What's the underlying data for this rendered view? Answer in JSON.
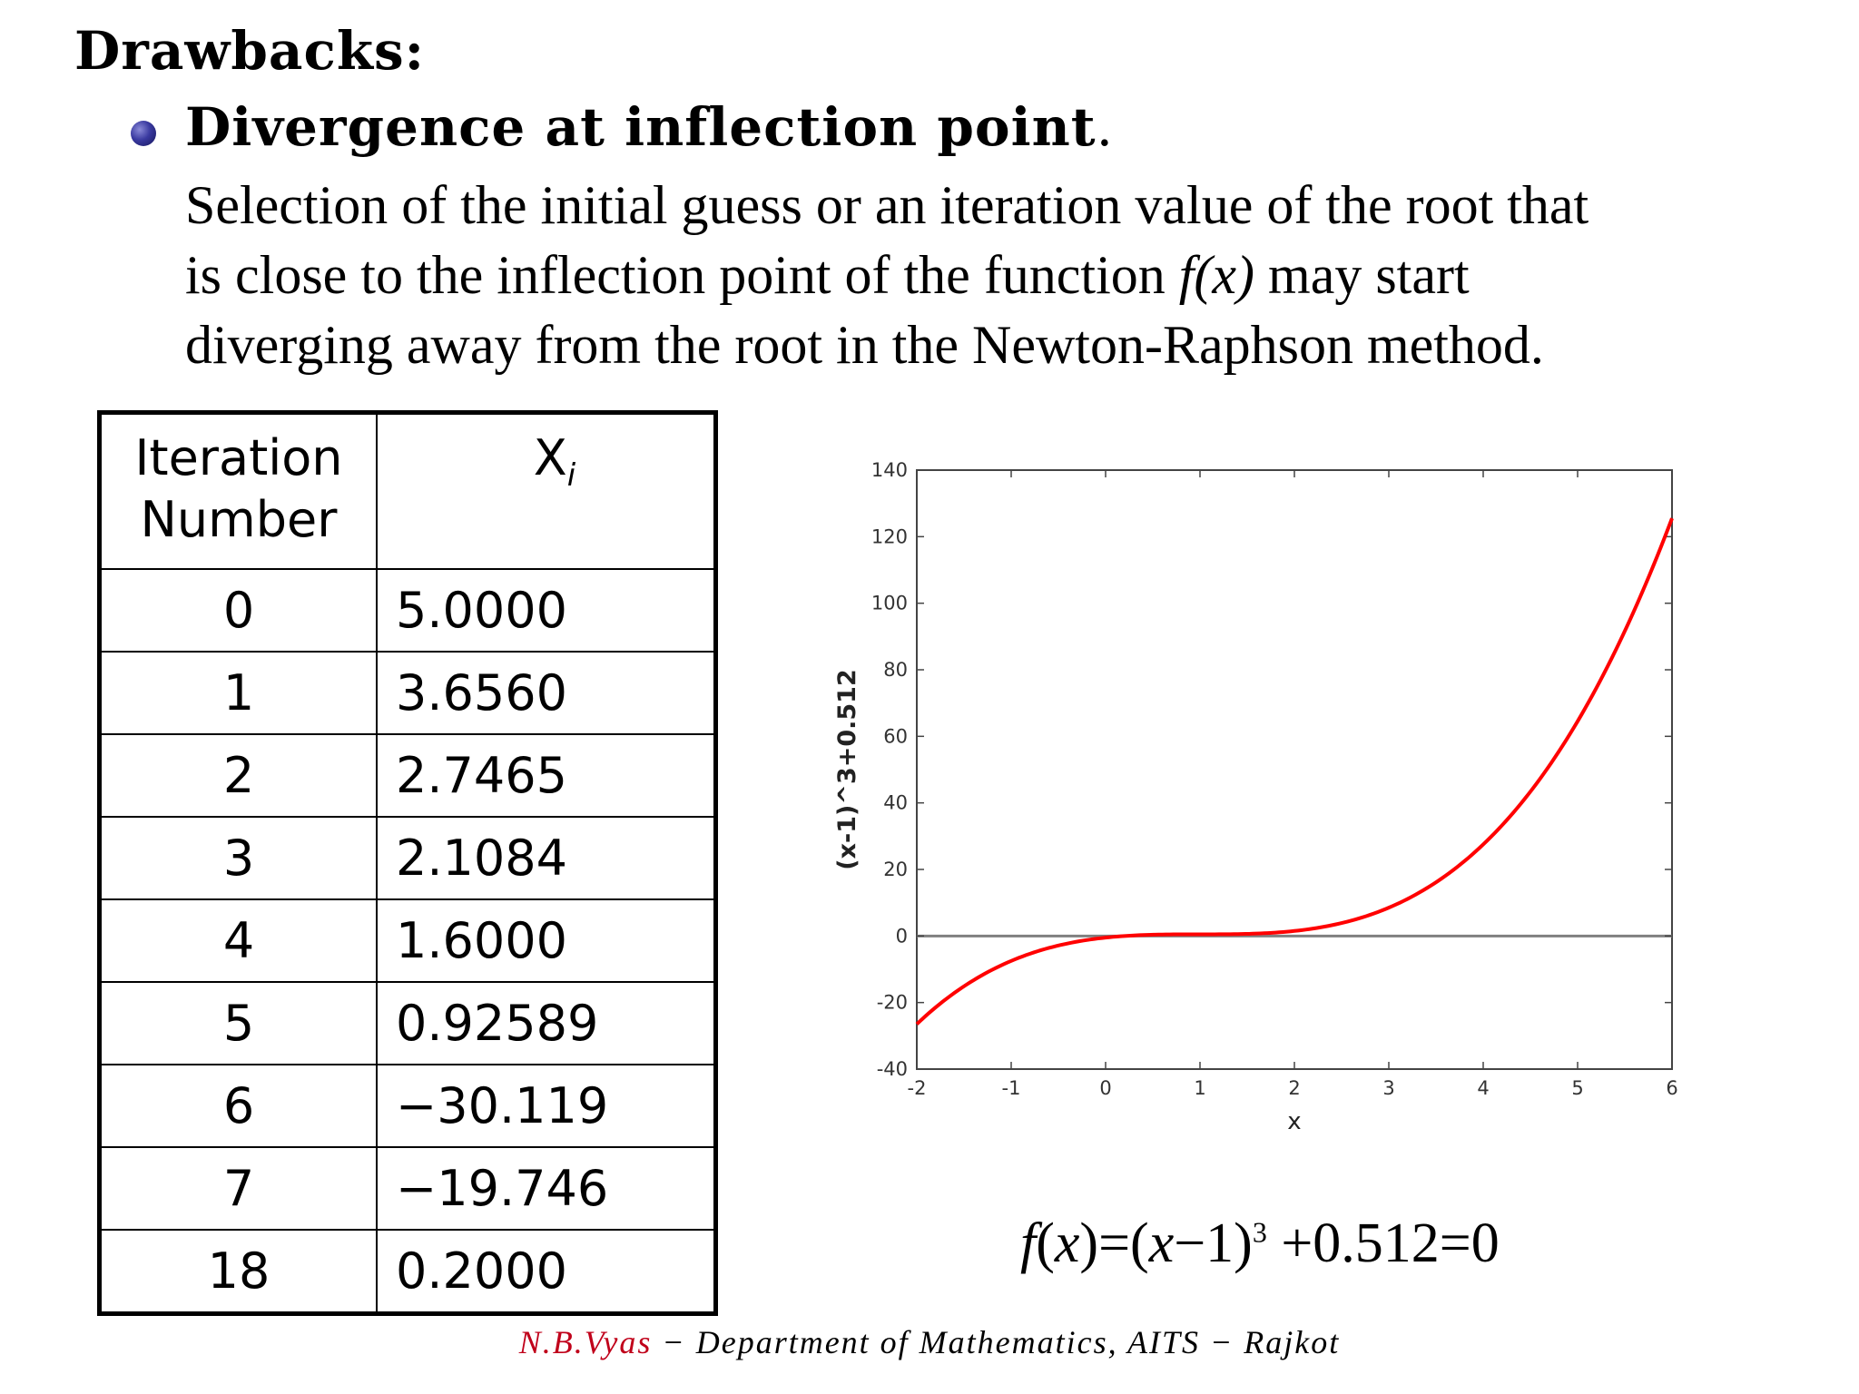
{
  "heading": "Drawbacks:",
  "bullet": {
    "title": "Divergence at inflection point",
    "title_end": ".",
    "lines": [
      "Selection of the initial guess or an iteration value of the root that",
      "is close to the inflection point of the function ",
      "diverging away from the root in the Newton-Raphson method."
    ],
    "fx": "f(x)",
    "line2_end": " may start"
  },
  "table": {
    "headers": {
      "iteration_line1": "Iteration",
      "iteration_line2": "Number",
      "xi": "X",
      "xi_sub": "i"
    },
    "rows": [
      {
        "n": "0",
        "x": "5.0000"
      },
      {
        "n": "1",
        "x": "3.6560"
      },
      {
        "n": "2",
        "x": "2.7465"
      },
      {
        "n": "3",
        "x": "2.1084"
      },
      {
        "n": "4",
        "x": "1.6000"
      },
      {
        "n": "5",
        "x": "0.92589"
      },
      {
        "n": "6",
        "x": "−30.119"
      },
      {
        "n": "7",
        "x": "−19.746"
      },
      {
        "n": "18",
        "x": "0.2000"
      }
    ]
  },
  "chart_data": {
    "type": "line",
    "xlabel": "x",
    "ylabel": "(x-1)^3+0.512",
    "xlim": [
      -2,
      6
    ],
    "ylim": [
      -40,
      140
    ],
    "xticks": [
      "-2",
      "-1",
      "0",
      "1",
      "2",
      "3",
      "4",
      "5",
      "6"
    ],
    "yticks": [
      "-40",
      "-20",
      "0",
      "20",
      "40",
      "60",
      "80",
      "100",
      "120",
      "140"
    ],
    "series": [
      {
        "function": "(x-1)^3+0.512",
        "color": "#ff0000",
        "x": [
          -2,
          -1.5,
          -1,
          -0.5,
          0,
          0.5,
          1,
          1.5,
          2,
          2.5,
          3,
          3.5,
          4,
          4.5,
          5,
          5.5,
          6
        ],
        "y": [
          -26.488,
          -15.113,
          -7.488,
          -2.863,
          -0.488,
          0.387,
          0.512,
          0.637,
          1.512,
          3.887,
          8.512,
          16.137,
          27.512,
          43.387,
          64.512,
          91.637,
          125.512
        ]
      }
    ],
    "zero_line_color": "#808080",
    "grid": false
  },
  "equation": {
    "f": "f",
    "x": "x",
    "text1": "(",
    "text2": ")=(",
    "text3": "−1)",
    "power": "3",
    "text4": " +0.512=0"
  },
  "footer": {
    "author": "N.B.Vyas",
    "rest": " − Department of Mathematics, AITS − Rajkot"
  }
}
